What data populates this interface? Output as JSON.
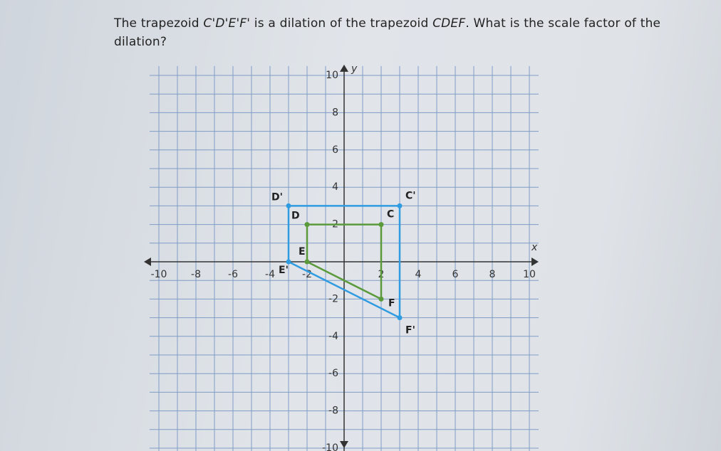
{
  "question": [
    "The trapezoid ",
    "C'D'E'F'",
    " is a dilation of the trapezoid ",
    "CDEF",
    ". What is the scale factor of the dilation?"
  ],
  "graph": {
    "x_label": "x",
    "y_label": "y",
    "xlim": [
      -10.5,
      10.5
    ],
    "ylim": [
      -10.5,
      10.5
    ],
    "xticks": [
      -10,
      -8,
      -6,
      -4,
      -2,
      2,
      4,
      6,
      8,
      10
    ],
    "yticks": [
      -10,
      -8,
      -6,
      -4,
      -2,
      2,
      4,
      6,
      8,
      10
    ],
    "shapes": [
      {
        "color": "#2f9be0",
        "vertices": [
          {
            "label": "C'",
            "x": 3,
            "y": 3
          },
          {
            "label": "D'",
            "x": -3,
            "y": 3
          },
          {
            "label": "E'",
            "x": -3,
            "y": 0
          },
          {
            "label": "F'",
            "x": 3,
            "y": -3
          }
        ]
      },
      {
        "color": "#5a9a3a",
        "vertices": [
          {
            "label": "C",
            "x": 2,
            "y": 2
          },
          {
            "label": "D",
            "x": -2,
            "y": 2
          },
          {
            "label": "E",
            "x": -2,
            "y": 0
          },
          {
            "label": "F",
            "x": 2,
            "y": -2
          }
        ]
      }
    ]
  }
}
